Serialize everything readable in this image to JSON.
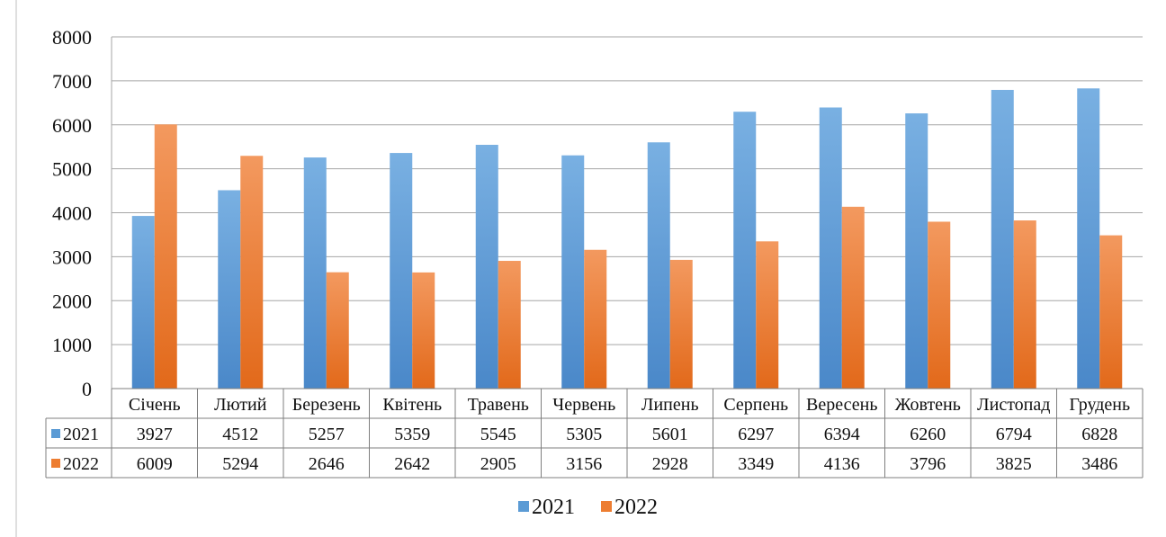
{
  "chart_data": {
    "type": "bar",
    "categories": [
      "Січень",
      "Лютий",
      "Березень",
      "Квітень",
      "Травень",
      "Червень",
      "Липень",
      "Серпень",
      "Вересень",
      "Жовтень",
      "Листопад",
      "Грудень"
    ],
    "series": [
      {
        "name": "2021",
        "color": "#5b9bd5",
        "values": [
          3927,
          4512,
          5257,
          5359,
          5545,
          5305,
          5601,
          6297,
          6394,
          6260,
          6794,
          6828
        ]
      },
      {
        "name": "2022",
        "color": "#ed7d31",
        "values": [
          6009,
          5294,
          2646,
          2642,
          2905,
          3156,
          2928,
          3349,
          4136,
          3796,
          3825,
          3486
        ]
      }
    ],
    "ylim": [
      0,
      8000
    ],
    "yticks": [
      "0",
      "1000",
      "2000",
      "3000",
      "4000",
      "5000",
      "6000",
      "7000",
      "8000"
    ],
    "grid": true,
    "data_table": true,
    "legend_position": "bottom"
  }
}
